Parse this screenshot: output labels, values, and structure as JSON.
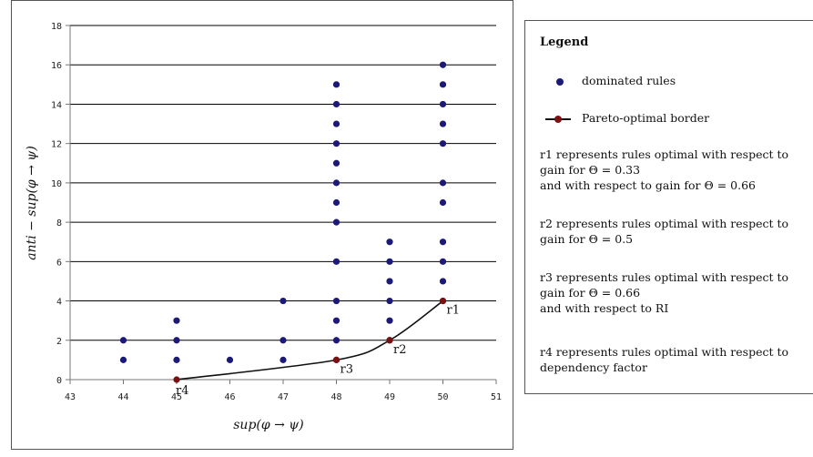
{
  "chart_data": {
    "type": "scatter",
    "xlabel": "sup(φ → ψ)",
    "ylabel": "anti − sup(φ → ψ)",
    "xlim": [
      43,
      51
    ],
    "ylim": [
      0,
      18
    ],
    "x_ticks": [
      "43",
      "44",
      "45",
      "46",
      "47",
      "48",
      "49",
      "50",
      "51"
    ],
    "y_ticks": [
      "0",
      "2",
      "4",
      "6",
      "8",
      "10",
      "12",
      "14",
      "16",
      "18"
    ],
    "grid": "horizontal",
    "series": [
      {
        "name": "dominated rules",
        "color": "#1c1a78",
        "points": [
          [
            44,
            1
          ],
          [
            44,
            2
          ],
          [
            45,
            1
          ],
          [
            45,
            2
          ],
          [
            45,
            3
          ],
          [
            46,
            1
          ],
          [
            47,
            1
          ],
          [
            47,
            2
          ],
          [
            47,
            4
          ],
          [
            48,
            1
          ],
          [
            48,
            2
          ],
          [
            48,
            3
          ],
          [
            48,
            4
          ],
          [
            48,
            6
          ],
          [
            48,
            8
          ],
          [
            48,
            9
          ],
          [
            48,
            10
          ],
          [
            48,
            11
          ],
          [
            48,
            12
          ],
          [
            48,
            13
          ],
          [
            48,
            14
          ],
          [
            48,
            15
          ],
          [
            49,
            2
          ],
          [
            49,
            3
          ],
          [
            49,
            4
          ],
          [
            49,
            5
          ],
          [
            49,
            6
          ],
          [
            49,
            7
          ],
          [
            50,
            4
          ],
          [
            50,
            5
          ],
          [
            50,
            6
          ],
          [
            50,
            7
          ],
          [
            50,
            9
          ],
          [
            50,
            10
          ],
          [
            50,
            12
          ],
          [
            50,
            13
          ],
          [
            50,
            14
          ],
          [
            50,
            15
          ],
          [
            50,
            16
          ]
        ]
      },
      {
        "name": "Pareto-optimal border",
        "color": "#7a1010",
        "points": [
          [
            45,
            0
          ],
          [
            48,
            1
          ],
          [
            49,
            2
          ],
          [
            50,
            4
          ]
        ],
        "labels": [
          "r4",
          "r3",
          "r2",
          "r1"
        ]
      }
    ]
  },
  "legend": {
    "title": "Legend",
    "dominated_label": "dominated rules",
    "border_label": "Pareto-optimal border",
    "notes": [
      [
        "r1 represents rules optimal with respect to",
        "gain for Θ = 0.33",
        "and with respect to gain for Θ = 0.66"
      ],
      [
        "r2 represents rules optimal with respect to",
        "gain for Θ = 0.5"
      ],
      [
        "r3 represents rules optimal with respect to",
        "gain for Θ = 0.66",
        "and with respect to RI"
      ],
      [
        "r4 represents rules optimal with respect to",
        "dependency factor"
      ]
    ]
  }
}
